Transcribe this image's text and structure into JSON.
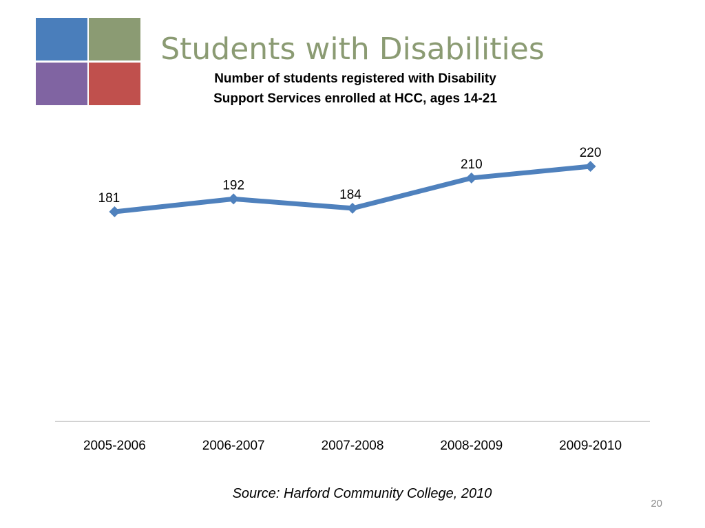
{
  "slide": {
    "title": "Students with Disabilities",
    "subtitle_line1": "Number of students registered with Disability",
    "subtitle_line2": "Support Services enrolled at HCC, ages 14-21",
    "source": "Source: Harford Community College, 2010",
    "page_number": "20",
    "logo_colors": [
      "#4a7ebb",
      "#8b9b73",
      "#8064a2",
      "#c0504d"
    ]
  },
  "chart_data": {
    "type": "line",
    "title": "",
    "xlabel": "",
    "ylabel": "",
    "categories": [
      "2005-2006",
      "2006-2007",
      "2007-2008",
      "2008-2009",
      "2009-2010"
    ],
    "series": [
      {
        "values": [
          181,
          192,
          184,
          210,
          220
        ],
        "color": "#4f81bd"
      }
    ],
    "data_labels": true,
    "marker": "diamond",
    "grid": false,
    "legend": "none",
    "ylim": [
      0,
      250
    ]
  }
}
